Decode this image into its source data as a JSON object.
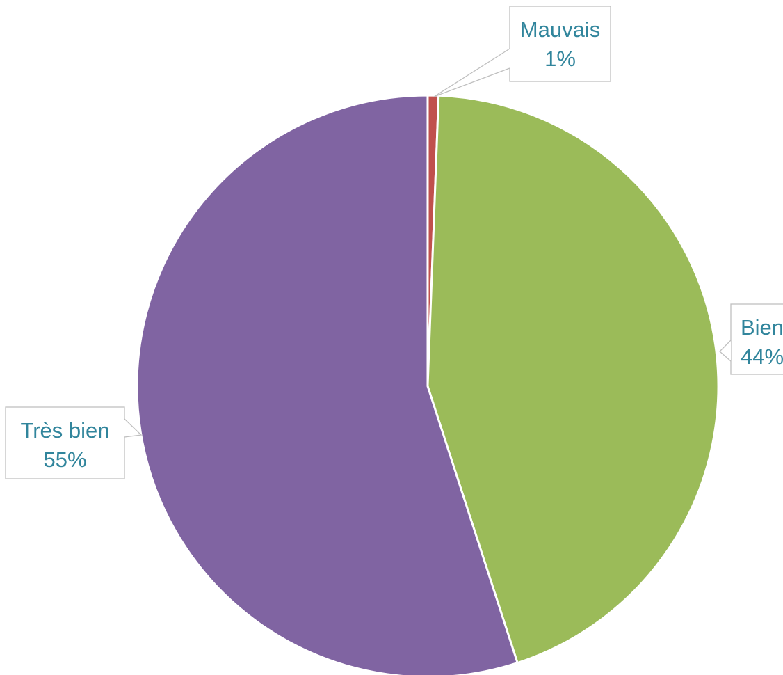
{
  "chart_data": {
    "type": "pie",
    "start_angle_deg": 0,
    "direction": "clockwise",
    "slices": [
      {
        "label": "Mauvais",
        "percent_label": "1%",
        "value": 0.6,
        "color": "#C0504D"
      },
      {
        "label": "Bien",
        "percent_label": "44%",
        "value": 44.4,
        "color": "#9BBB59"
      },
      {
        "label": "Très bien",
        "percent_label": "55%",
        "value": 55.0,
        "color": "#8064A2"
      }
    ],
    "label_color": "#31859C",
    "data_labels": "callout boxes showing category and percentage",
    "legend": "none",
    "title": ""
  }
}
